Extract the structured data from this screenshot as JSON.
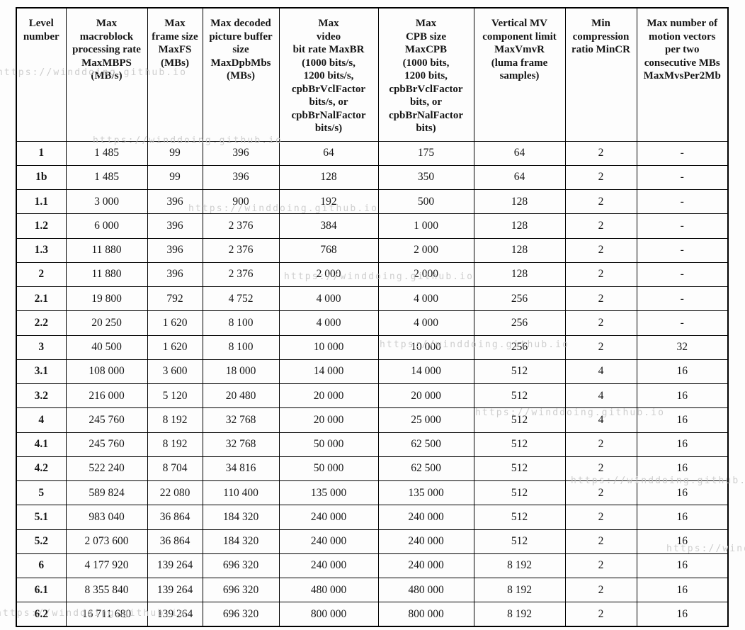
{
  "watermark": {
    "text": "https://winddoing.github.io",
    "color": "#c6c6c6"
  },
  "table": {
    "columns": [
      {
        "label": "Level\nnumber"
      },
      {
        "label": "Max\nmacroblock\nprocessing rate\nMaxMBPS\n(MB/s)"
      },
      {
        "label": "Max\nframe size\nMaxFS\n(MBs)"
      },
      {
        "label": "Max decoded\npicture buffer\nsize\nMaxDpbMbs\n(MBs)"
      },
      {
        "label": "Max\nvideo\nbit rate MaxBR\n(1000 bits/s,\n1200 bits/s,\ncpbBrVclFactor\nbits/s, or\ncpbBrNalFactor\nbits/s)"
      },
      {
        "label": "Max\nCPB size\nMaxCPB\n(1000 bits,\n1200 bits,\ncpbBrVclFactor\nbits, or\ncpbBrNalFactor\nbits)"
      },
      {
        "label": "Vertical MV\ncomponent limit\nMaxVmvR\n(luma frame\nsamples)"
      },
      {
        "label": "Min\ncompression\nratio MinCR"
      },
      {
        "label": "Max number of\nmotion vectors\nper two\nconsecutive MBs\nMaxMvsPer2Mb"
      }
    ],
    "rows": [
      {
        "level": "1",
        "values": [
          "1 485",
          "99",
          "396",
          "64",
          "175",
          "64",
          "2",
          "-"
        ]
      },
      {
        "level": "1b",
        "values": [
          "1 485",
          "99",
          "396",
          "128",
          "350",
          "64",
          "2",
          "-"
        ]
      },
      {
        "level": "1.1",
        "values": [
          "3 000",
          "396",
          "900",
          "192",
          "500",
          "128",
          "2",
          "-"
        ]
      },
      {
        "level": "1.2",
        "values": [
          "6 000",
          "396",
          "2 376",
          "384",
          "1 000",
          "128",
          "2",
          "-"
        ]
      },
      {
        "level": "1.3",
        "values": [
          "11 880",
          "396",
          "2 376",
          "768",
          "2 000",
          "128",
          "2",
          "-"
        ]
      },
      {
        "level": "2",
        "values": [
          "11 880",
          "396",
          "2 376",
          "2 000",
          "2 000",
          "128",
          "2",
          "-"
        ]
      },
      {
        "level": "2.1",
        "values": [
          "19 800",
          "792",
          "4 752",
          "4 000",
          "4 000",
          "256",
          "2",
          "-"
        ]
      },
      {
        "level": "2.2",
        "values": [
          "20 250",
          "1 620",
          "8 100",
          "4 000",
          "4 000",
          "256",
          "2",
          "-"
        ]
      },
      {
        "level": "3",
        "values": [
          "40 500",
          "1 620",
          "8 100",
          "10 000",
          "10 000",
          "256",
          "2",
          "32"
        ]
      },
      {
        "level": "3.1",
        "values": [
          "108 000",
          "3 600",
          "18 000",
          "14 000",
          "14 000",
          "512",
          "4",
          "16"
        ]
      },
      {
        "level": "3.2",
        "values": [
          "216 000",
          "5 120",
          "20 480",
          "20 000",
          "20 000",
          "512",
          "4",
          "16"
        ]
      },
      {
        "level": "4",
        "values": [
          "245 760",
          "8 192",
          "32 768",
          "20 000",
          "25 000",
          "512",
          "4",
          "16"
        ]
      },
      {
        "level": "4.1",
        "values": [
          "245 760",
          "8 192",
          "32 768",
          "50 000",
          "62 500",
          "512",
          "2",
          "16"
        ]
      },
      {
        "level": "4.2",
        "values": [
          "522 240",
          "8 704",
          "34 816",
          "50 000",
          "62 500",
          "512",
          "2",
          "16"
        ]
      },
      {
        "level": "5",
        "values": [
          "589 824",
          "22 080",
          "110 400",
          "135 000",
          "135 000",
          "512",
          "2",
          "16"
        ]
      },
      {
        "level": "5.1",
        "values": [
          "983 040",
          "36 864",
          "184 320",
          "240 000",
          "240 000",
          "512",
          "2",
          "16"
        ]
      },
      {
        "level": "5.2",
        "values": [
          "2 073 600",
          "36 864",
          "184 320",
          "240 000",
          "240 000",
          "512",
          "2",
          "16"
        ]
      },
      {
        "level": "6",
        "values": [
          "4 177 920",
          "139 264",
          "696 320",
          "240 000",
          "240 000",
          "8 192",
          "2",
          "16"
        ]
      },
      {
        "level": "6.1",
        "values": [
          "8 355 840",
          "139 264",
          "696 320",
          "480 000",
          "480 000",
          "8 192",
          "2",
          "16"
        ]
      },
      {
        "level": "6.2",
        "values": [
          "16 711 680",
          "139 264",
          "696 320",
          "800 000",
          "800 000",
          "8 192",
          "2",
          "16"
        ]
      }
    ]
  }
}
